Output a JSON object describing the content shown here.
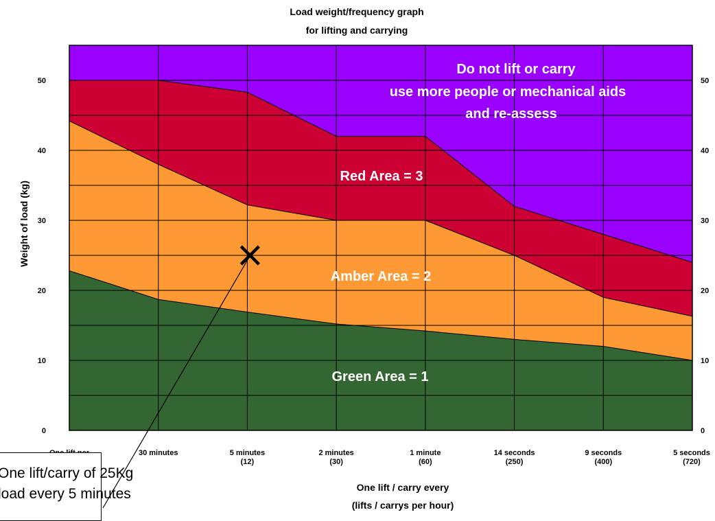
{
  "chart_data": {
    "type": "area",
    "title": [
      "Load weight/frequency graph",
      "for lifting and carrying"
    ],
    "ylabel": "Weight of load (kg)",
    "xlabel": [
      "One lift / carry  every",
      "(lifts / carrys per hour)"
    ],
    "ylim": [
      0,
      55
    ],
    "y_ticks": [
      0,
      10,
      20,
      30,
      40,
      50
    ],
    "grid": true,
    "categories": [
      [
        "One lift per",
        ""
      ],
      [
        "30 minutes",
        ""
      ],
      [
        "5 minutes",
        "(12)"
      ],
      [
        "2 minutes",
        "(30)"
      ],
      [
        "1 minute",
        "(60)"
      ],
      [
        "14 seconds",
        "(250)"
      ],
      [
        "9 seconds",
        "(400)"
      ],
      [
        "5 seconds",
        "(720)"
      ]
    ],
    "series": [
      {
        "name": "Green Area = 1",
        "color": "#336633",
        "values": [
          22.8,
          18.7,
          16.9,
          15.2,
          14.2,
          13.0,
          12.0,
          10.0
        ]
      },
      {
        "name": "Amber Area = 2",
        "color": "#ff9933",
        "values": [
          44.2,
          38.0,
          32.2,
          30.0,
          30.0,
          25.0,
          19.0,
          16.3
        ]
      },
      {
        "name": "Red Area = 3",
        "color": "#cc0033",
        "values": [
          50.0,
          50.0,
          48.3,
          42.0,
          42.0,
          32.0,
          28.0,
          24.0
        ]
      }
    ],
    "top_region": {
      "color": "#9900ff",
      "lines": [
        "Do not lift or carry",
        "use more people or mechanical aids",
        "and re-assess"
      ]
    },
    "marker": {
      "category_index": 2.03,
      "y": 25
    },
    "annotation": [
      "One lift/carry of 25Kg",
      "load every 5 minutes"
    ]
  }
}
